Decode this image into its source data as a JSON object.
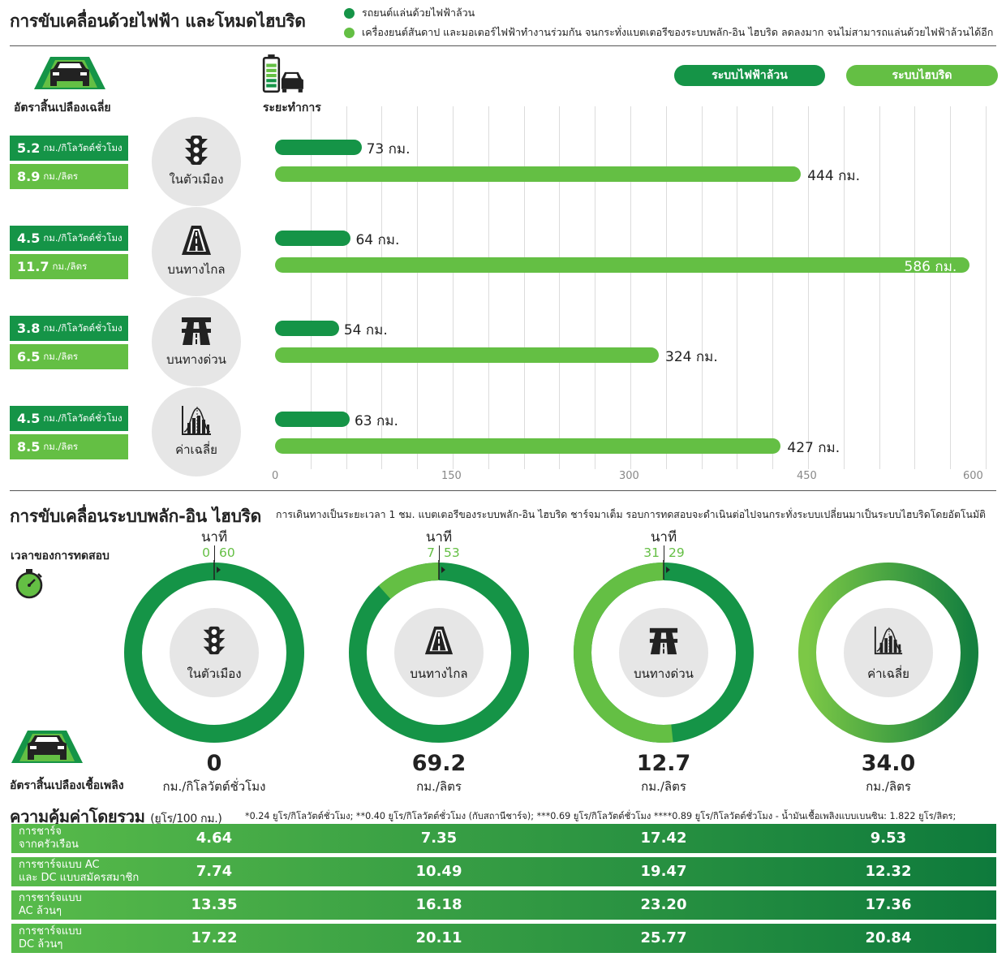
{
  "title": "การขับเคลื่อนด้วยไฟฟ้า และโหมดไฮบริด",
  "legend": [
    {
      "label": "รถยนต์แล่นด้วยไฟฟ้าล้วน",
      "color": "#159447"
    },
    {
      "label": "เครื่องยนต์สันดาป และมอเตอร์ไฟฟ้าทำงานร่วมกัน จนกระทั่งแบตเตอรีของระบบพลัก-อิน ไฮบริด ลดลงมาก จนไม่สามารถแล่นด้วยไฟฟ้าล้วนได้อีก",
      "color": "#64bf44"
    }
  ],
  "headers": {
    "efficiency": "อัตราสิ้นเปลืองเฉลี่ย",
    "range": "ระยะทำการ",
    "pill_ev": "ระบบไฟฟ้าล้วน",
    "pill_hybrid": "ระบบไฮบริด"
  },
  "colors": {
    "ev": "#159447",
    "hybrid": "#64bf44",
    "circle_bg": "#e6e6e6"
  },
  "categories": [
    {
      "label": "ในตัวเมือง",
      "icon": "traffic-light-icon",
      "ev_value": "5.2",
      "ev_unit": "กม./กิโลวัตต์ชั่วโมง",
      "hy_value": "8.9",
      "hy_unit": "กม./ลิตร"
    },
    {
      "label": "บนทางไกล",
      "icon": "road-icon",
      "ev_value": "4.5",
      "ev_unit": "กม./กิโลวัตต์ชั่วโมง",
      "hy_value": "11.7",
      "hy_unit": "กม./ลิตร"
    },
    {
      "label": "บนทางด่วน",
      "icon": "highway-icon",
      "ev_value": "3.8",
      "ev_unit": "กม./กิโลวัตต์ชั่วโมง",
      "hy_value": "6.5",
      "hy_unit": "กม./ลิตร"
    },
    {
      "label": "ค่าเฉลี่ย",
      "icon": "average-chart-icon",
      "ev_value": "4.5",
      "ev_unit": "กม./กิโลวัตต์ชั่วโมง",
      "hy_value": "8.5",
      "hy_unit": "กม./ลิตร"
    }
  ],
  "chart_data": {
    "type": "bar",
    "orientation": "horizontal",
    "categories": [
      "ในตัวเมือง",
      "บนทางไกล",
      "บนทางด่วน",
      "ค่าเฉลี่ย"
    ],
    "series": [
      {
        "name": "ระบบไฟฟ้าล้วน",
        "values": [
          73,
          64,
          54,
          63
        ],
        "labels": [
          "73 กม.",
          "64 กม.",
          "54 กม.",
          "63 กม."
        ]
      },
      {
        "name": "ระบบไฮบริด",
        "values": [
          444,
          586,
          324,
          427
        ],
        "labels": [
          "444 กม.",
          "586 กม.",
          "324 กม.",
          "427 กม."
        ]
      }
    ],
    "ticks": [
      0,
      150,
      300,
      450,
      600
    ],
    "xlim": [
      0,
      600
    ],
    "grid": true
  },
  "plugin": {
    "title": "การขับเคลื่อนระบบพลัก-อิน ไฮบริด",
    "description": "การเดินทางเป็นระยะเวลา 1 ชม. แบตเตอรีของระบบพลัก-อิน ไฮบริด ชาร์จมาเต็ม รอบการทดสอบจะดำเนินต่อไปจนกระทั่งระบบเปลี่ยนมาเป็นระบบไฮบริดโดยอัตโนมัติ",
    "test_time_label": "เวลาของการทดสอบ",
    "minute_label": "นาที",
    "consumption_label": "อัตราสิ้นเปลืองเชื้อเพลิง",
    "rings": [
      {
        "label": "ในตัวเมือง",
        "icon": "traffic-light-icon",
        "hybrid_min": "0",
        "ev_min": "60",
        "hybrid_fraction": 0,
        "value": "0",
        "unit": "กม./กิโลวัตต์ชั่วโมง",
        "show_minutes": true
      },
      {
        "label": "บนทางไกล",
        "icon": "road-icon",
        "hybrid_min": "7",
        "ev_min": "53",
        "hybrid_fraction": 0.1167,
        "value": "69.2",
        "unit": "กม./ลิตร",
        "show_minutes": true
      },
      {
        "label": "บนทางด่วน",
        "icon": "highway-icon",
        "hybrid_min": "31",
        "ev_min": "29",
        "hybrid_fraction": 0.5167,
        "value": "12.7",
        "unit": "กม./ลิตร",
        "show_minutes": true
      },
      {
        "label": "ค่าเฉลี่ย",
        "icon": "average-chart-icon",
        "hybrid_min": "",
        "ev_min": "",
        "hybrid_fraction": null,
        "value": "34.0",
        "unit": "กม./ลิตร",
        "show_minutes": false
      }
    ]
  },
  "cost": {
    "title": "ความคุ้มค่าโดยรวม",
    "title_unit": "(ยูโร/100 กม.)",
    "note": "*0.24 ยูโร/กิโลวัตต์ชั่วโมง; **0.40 ยูโร/กิโลวัตต์ชั่วโมง (กับสถานีชาร์จ); ***0.69 ยูโร/กิโลวัตต์ชั่วโมง ****0.89 ยูโร/กิโลวัตต์ชั่วโมง - น้ำมันเชื้อเพลิงแบบเบนซิน: 1.822 ยูโร/ลิตร;",
    "rows": [
      {
        "label1": "การชาร์จ",
        "label2": "จากครัวเรือน",
        "values": [
          "4.64",
          "7.35",
          "17.42",
          "9.53"
        ]
      },
      {
        "label1": "การชาร์จแบบ AC",
        "label2": "และ DC แบบสมัครสมาชิก",
        "values": [
          "7.74",
          "10.49",
          "19.47",
          "12.32"
        ]
      },
      {
        "label1": "การชาร์จแบบ",
        "label2": "AC ล้วนๆ",
        "values": [
          "13.35",
          "16.18",
          "23.20",
          "17.36"
        ]
      },
      {
        "label1": "การชาร์จแบบ",
        "label2": "DC ล้วนๆ",
        "values": [
          "17.22",
          "20.11",
          "25.77",
          "20.84"
        ]
      }
    ]
  }
}
